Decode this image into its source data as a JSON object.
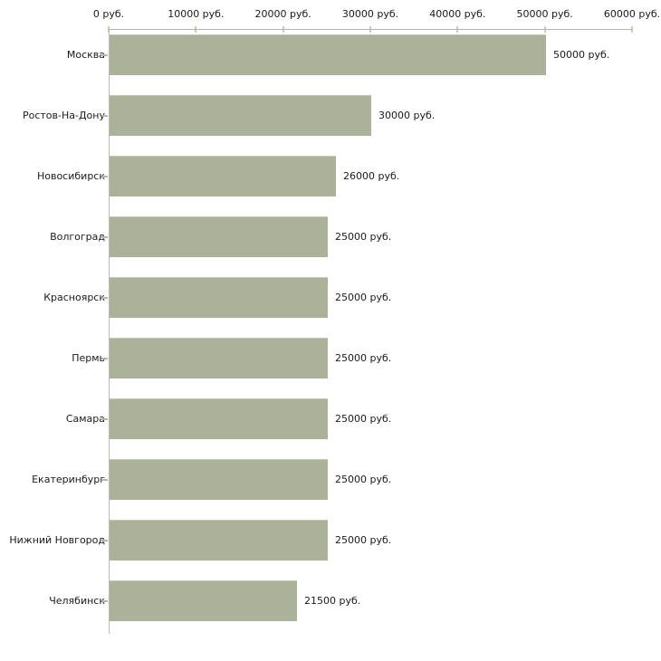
{
  "chart_data": {
    "type": "bar",
    "orientation": "horizontal",
    "title": "",
    "xlabel": "",
    "ylabel": "",
    "units": "руб.",
    "grid": "off",
    "legend": "none",
    "categories": [
      "Москва",
      "Ростов-На-Дону",
      "Новосибирск",
      "Волгоград",
      "Красноярск",
      "Пермь",
      "Самара",
      "Екатеринбург",
      "Нижний Новгород",
      "Челябинск"
    ],
    "values": [
      50000,
      30000,
      26000,
      25000,
      25000,
      25000,
      25000,
      25000,
      25000,
      21500
    ],
    "value_labels": [
      "50000 руб.",
      "30000 руб.",
      "26000 руб.",
      "25000 руб.",
      "25000 руб.",
      "25000 руб.",
      "25000 руб.",
      "25000 руб.",
      "25000 руб.",
      "21500 руб."
    ],
    "x_axis": {
      "position": "top",
      "range": [
        0,
        60000
      ],
      "ticks": [
        0,
        10000,
        20000,
        30000,
        40000,
        50000,
        60000
      ],
      "tick_labels": [
        "0 руб.",
        "10000 руб.",
        "20000 руб.",
        "30000 руб.",
        "40000 руб.",
        "50000 руб.",
        "60000 руб."
      ]
    },
    "colors": {
      "bar_fill": "#acb29a",
      "bar_top_edge": "#c3c8b0",
      "axis_line": "#b3b3b3",
      "axis_tick": "#c9cdb3",
      "category_tick": "#b5baa2",
      "text": "#1a1a1a",
      "background": "#ffffff"
    }
  }
}
